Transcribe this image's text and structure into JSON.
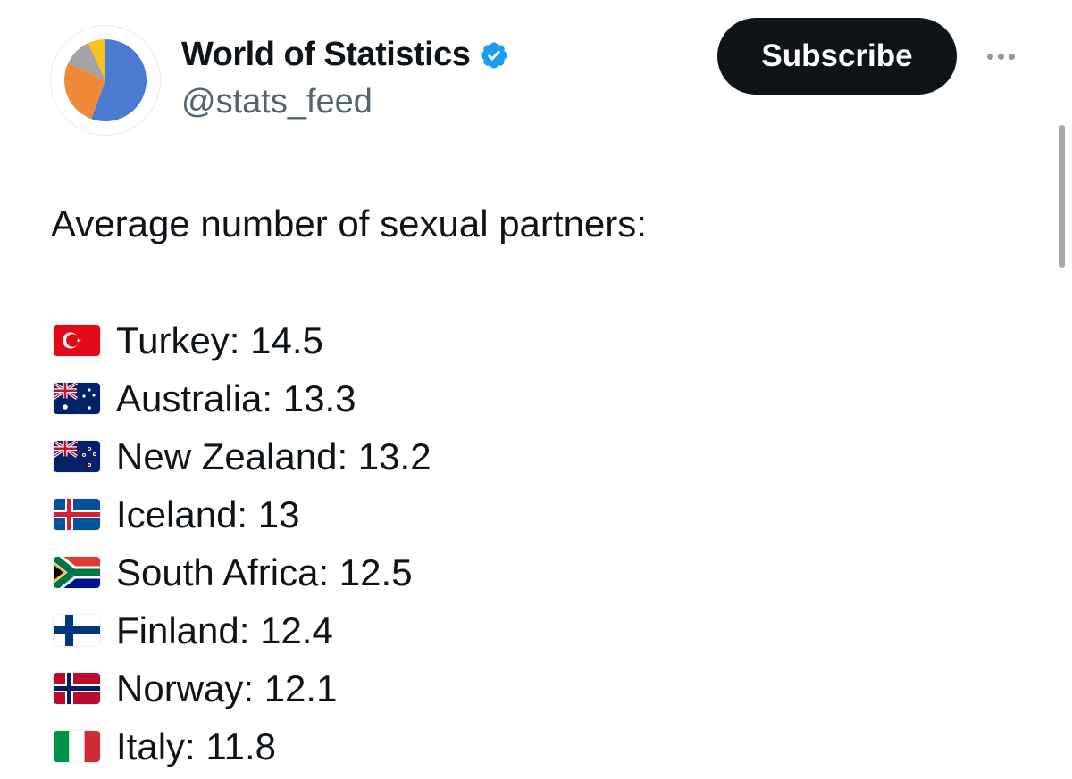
{
  "profile": {
    "display_name": "World of Statistics",
    "handle": "@stats_feed",
    "verified": true,
    "avatar_icon": "pie-chart-logo",
    "colors": {
      "blue": "#4a7bd0",
      "orange": "#ee8a3a",
      "gray": "#a3a3a3",
      "yellow": "#f8c21c"
    }
  },
  "actions": {
    "subscribe_label": "Subscribe",
    "more_icon": "more-horizontal-icon"
  },
  "tweet": {
    "intro": "Average number of sexual partners:",
    "items": [
      {
        "flag": "turkey-flag-icon",
        "text": "Turkey: 14.5"
      },
      {
        "flag": "australia-flag-icon",
        "text": "Australia: 13.3"
      },
      {
        "flag": "new-zealand-flag-icon",
        "text": "New Zealand: 13.2"
      },
      {
        "flag": "iceland-flag-icon",
        "text": "Iceland: 13"
      },
      {
        "flag": "south-africa-flag-icon",
        "text": "South Africa: 12.5"
      },
      {
        "flag": "finland-flag-icon",
        "text": "Finland: 12.4"
      },
      {
        "flag": "norway-flag-icon",
        "text": "Norway: 12.1"
      },
      {
        "flag": "italy-flag-icon",
        "text": "Italy: 11.8"
      }
    ]
  },
  "theme": {
    "text": "#0f1419",
    "muted": "#536471",
    "verified_blue": "#1d9bf0",
    "button_bg": "#0f1419"
  }
}
